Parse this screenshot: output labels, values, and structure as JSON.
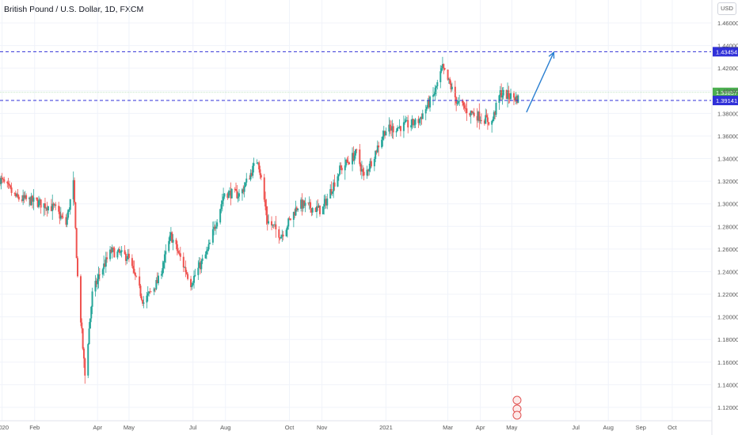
{
  "header": {
    "title": "British Pound / U.S. Dollar, 1D, FXCM",
    "currency_button": "USD"
  },
  "colors": {
    "up": "#26a69a",
    "down": "#ef5350",
    "line_blue": "#3030d8",
    "arrow": "#2a7fd1",
    "price_tag": "#4caf50",
    "axis_text": "#555555"
  },
  "chart_data": {
    "type": "candlestick",
    "y_axis": {
      "range": [
        1.11,
        1.473
      ],
      "ticks": [
        "1.46000",
        "1.44000",
        "1.42000",
        "1.40000",
        "1.38000",
        "1.36000",
        "1.34000",
        "1.32000",
        "1.30000",
        "1.28000",
        "1.26000",
        "1.24000",
        "1.22000",
        "1.20000",
        "1.18000",
        "1.16000",
        "1.14000",
        "1.12000"
      ]
    },
    "x_axis": {
      "ticks": [
        {
          "label": "2020",
          "date": "2020-01-01"
        },
        {
          "label": "Feb",
          "date": "2020-02-01"
        },
        {
          "label": "Apr",
          "date": "2020-04-01"
        },
        {
          "label": "May",
          "date": "2020-05-01"
        },
        {
          "label": "Jul",
          "date": "2020-07-01"
        },
        {
          "label": "Aug",
          "date": "2020-08-01"
        },
        {
          "label": "Oct",
          "date": "2020-10-01"
        },
        {
          "label": "Nov",
          "date": "2020-11-01"
        },
        {
          "label": "2021",
          "date": "2021-01-01"
        },
        {
          "label": "Mar",
          "date": "2021-03-01"
        },
        {
          "label": "Apr",
          "date": "2021-04-01"
        },
        {
          "label": "May",
          "date": "2021-05-01"
        },
        {
          "label": "Jul",
          "date": "2021-07-01"
        },
        {
          "label": "Aug",
          "date": "2021-08-01"
        },
        {
          "label": "Sep",
          "date": "2021-09-01"
        },
        {
          "label": "Oct",
          "date": "2021-10-01"
        }
      ],
      "start": "2019-12-30",
      "end": "2021-11-07"
    },
    "price_path": [
      [
        "2019-12-30",
        1.322
      ],
      [
        "2020-01-15",
        1.305
      ],
      [
        "2020-02-01",
        1.302
      ],
      [
        "2020-02-20",
        1.296
      ],
      [
        "2020-03-02",
        1.282
      ],
      [
        "2020-03-09",
        1.318
      ],
      [
        "2020-03-13",
        1.235
      ],
      [
        "2020-03-20",
        1.148
      ],
      [
        "2020-03-27",
        1.22
      ],
      [
        "2020-04-03",
        1.238
      ],
      [
        "2020-04-14",
        1.258
      ],
      [
        "2020-04-30",
        1.253
      ],
      [
        "2020-05-15",
        1.213
      ],
      [
        "2020-05-29",
        1.232
      ],
      [
        "2020-06-10",
        1.272
      ],
      [
        "2020-06-29",
        1.23
      ],
      [
        "2020-07-15",
        1.258
      ],
      [
        "2020-07-31",
        1.31
      ],
      [
        "2020-08-15",
        1.308
      ],
      [
        "2020-09-01",
        1.34
      ],
      [
        "2020-09-10",
        1.285
      ],
      [
        "2020-09-23",
        1.272
      ],
      [
        "2020-10-10",
        1.3
      ],
      [
        "2020-11-01",
        1.294
      ],
      [
        "2020-11-18",
        1.33
      ],
      [
        "2020-12-04",
        1.345
      ],
      [
        "2020-12-11",
        1.323
      ],
      [
        "2020-12-31",
        1.365
      ],
      [
        "2021-01-31",
        1.372
      ],
      [
        "2021-02-15",
        1.395
      ],
      [
        "2021-02-24",
        1.42
      ],
      [
        "2021-03-10",
        1.39
      ],
      [
        "2021-03-20",
        1.382
      ],
      [
        "2021-04-12",
        1.372
      ],
      [
        "2021-04-20",
        1.398
      ],
      [
        "2021-05-07",
        1.393
      ]
    ],
    "lows": [
      {
        "date": "2020-03-20",
        "value": 1.1409
      }
    ],
    "horizontal_levels": [
      {
        "label": "1.43454",
        "value": 1.43454
      },
      {
        "label": "1.39141",
        "value": 1.39141
      }
    ],
    "current_price": {
      "label": "1.39857",
      "value": 1.39857
    },
    "projection_arrow": {
      "from": {
        "date": "2021-05-15",
        "value": 1.381
      },
      "to": {
        "date": "2021-06-10",
        "value": 1.434
      }
    }
  }
}
